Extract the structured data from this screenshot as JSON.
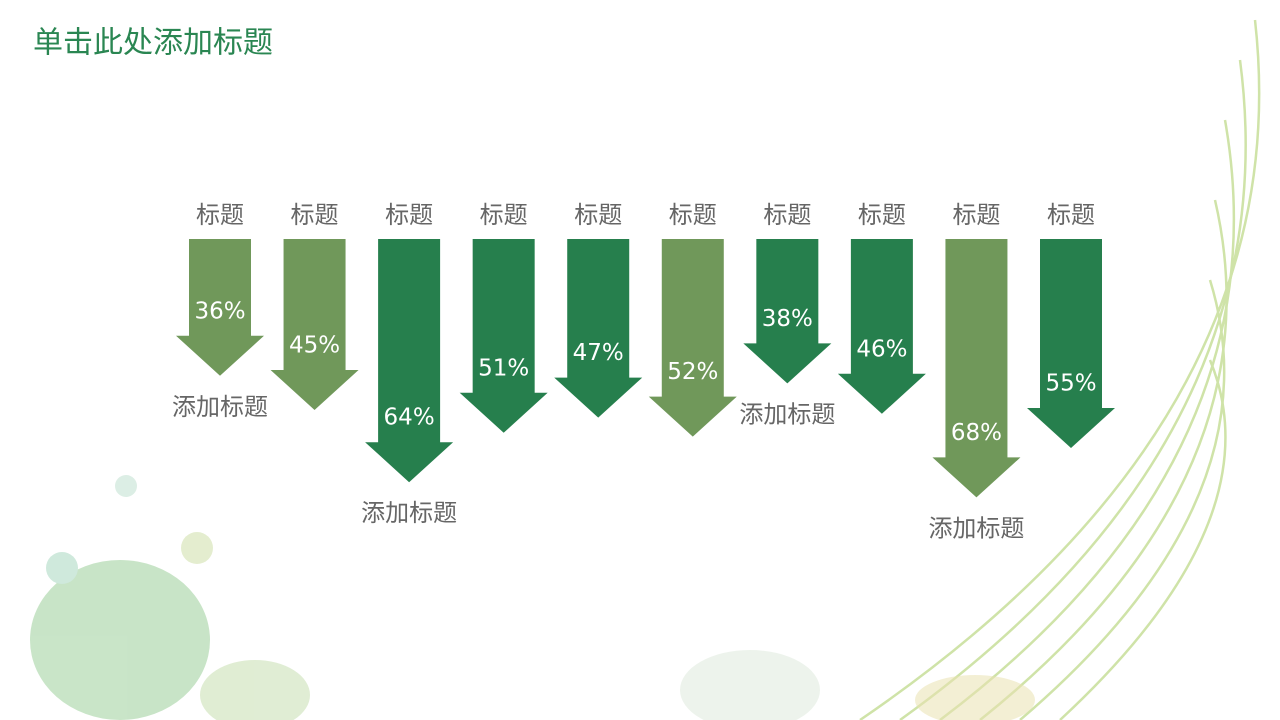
{
  "chart_data": {
    "type": "arrow",
    "title": "单击此处添加标题",
    "categories": [
      "标题",
      "标题",
      "标题",
      "标题",
      "标题",
      "标题",
      "标题",
      "标题",
      "标题",
      "标题"
    ],
    "values": [
      36,
      45,
      64,
      51,
      47,
      52,
      38,
      46,
      68,
      55
    ],
    "value_labels": [
      "36%",
      "45%",
      "64%",
      "51%",
      "47%",
      "52%",
      "38%",
      "46%",
      "68%",
      "55%"
    ],
    "sublabels": [
      "添加标题",
      null,
      "添加标题",
      null,
      null,
      null,
      "添加标题",
      null,
      "添加标题",
      null
    ],
    "colors": [
      "#70985a",
      "#70985a",
      "#267f4d",
      "#267f4d",
      "#267f4d",
      "#70985a",
      "#267f4d",
      "#267f4d",
      "#70985a",
      "#267f4d"
    ]
  }
}
